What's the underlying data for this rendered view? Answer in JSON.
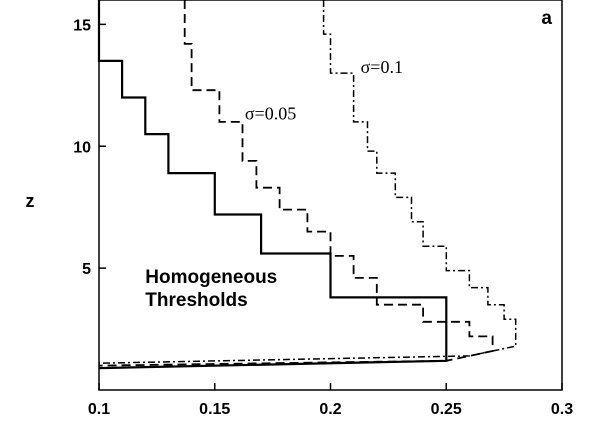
{
  "chart_data": {
    "type": "line",
    "panel_label": "a",
    "xlabel": "",
    "ylabel": "z",
    "xlim": [
      0.1,
      0.3
    ],
    "ylim": [
      0,
      16
    ],
    "xticks": [
      0.1,
      0.15,
      0.2,
      0.25,
      0.3
    ],
    "xtick_labels": [
      "0.1",
      "0.15",
      "0.2",
      "0.25",
      "0.3"
    ],
    "yticks": [
      5,
      10,
      15
    ],
    "ytick_labels": [
      "5",
      "10",
      "15"
    ],
    "grid": false,
    "legend": "none",
    "annotations": [
      {
        "id": "homogeneous",
        "lines": [
          "Homogeneous",
          "Thresholds"
        ],
        "x": 0.12,
        "y": 4.4,
        "style": "bold-sans"
      },
      {
        "id": "sigma005",
        "text": "σ=0.05",
        "x": 0.163,
        "y": 11.1,
        "style": "serif"
      },
      {
        "id": "sigma01",
        "text": "σ=0.1",
        "x": 0.213,
        "y": 13.0,
        "style": "serif"
      }
    ],
    "series": [
      {
        "key": "homogeneous",
        "dash": "solid",
        "color": "#000000",
        "points": [
          [
            0.1,
            16
          ],
          [
            0.1,
            13.5
          ],
          [
            0.11,
            13.5
          ],
          [
            0.11,
            12.0
          ],
          [
            0.12,
            12.0
          ],
          [
            0.12,
            10.5
          ],
          [
            0.13,
            10.5
          ],
          [
            0.13,
            8.9
          ],
          [
            0.15,
            8.9
          ],
          [
            0.15,
            7.2
          ],
          [
            0.17,
            7.2
          ],
          [
            0.17,
            5.6
          ],
          [
            0.2,
            5.6
          ],
          [
            0.2,
            3.8
          ],
          [
            0.25,
            3.8
          ],
          [
            0.25,
            1.2
          ],
          [
            0.1,
            0.9
          ]
        ]
      },
      {
        "key": "sigma_0.05",
        "dash": "dashed",
        "color": "#000000",
        "points": [
          [
            0.137,
            16
          ],
          [
            0.137,
            14.2
          ],
          [
            0.14,
            14.2
          ],
          [
            0.14,
            12.3
          ],
          [
            0.152,
            12.3
          ],
          [
            0.152,
            11.0
          ],
          [
            0.162,
            11.0
          ],
          [
            0.162,
            9.4
          ],
          [
            0.168,
            9.4
          ],
          [
            0.168,
            8.3
          ],
          [
            0.178,
            8.3
          ],
          [
            0.178,
            7.4
          ],
          [
            0.19,
            7.4
          ],
          [
            0.19,
            6.5
          ],
          [
            0.2,
            6.5
          ],
          [
            0.2,
            5.5
          ],
          [
            0.21,
            5.5
          ],
          [
            0.21,
            4.6
          ],
          [
            0.22,
            4.6
          ],
          [
            0.22,
            3.5
          ],
          [
            0.24,
            3.5
          ],
          [
            0.24,
            2.8
          ],
          [
            0.26,
            2.8
          ],
          [
            0.26,
            2.2
          ],
          [
            0.27,
            2.2
          ],
          [
            0.27,
            1.6
          ],
          [
            0.25,
            1.2
          ],
          [
            0.1,
            1.0
          ]
        ]
      },
      {
        "key": "sigma_0.1",
        "dash": "dashdot",
        "color": "#000000",
        "points": [
          [
            0.197,
            16
          ],
          [
            0.197,
            14.6
          ],
          [
            0.2,
            14.6
          ],
          [
            0.2,
            13.0
          ],
          [
            0.21,
            13.0
          ],
          [
            0.21,
            11.0
          ],
          [
            0.216,
            11.0
          ],
          [
            0.216,
            9.8
          ],
          [
            0.22,
            9.8
          ],
          [
            0.22,
            8.9
          ],
          [
            0.228,
            8.9
          ],
          [
            0.228,
            7.9
          ],
          [
            0.235,
            7.9
          ],
          [
            0.235,
            6.9
          ],
          [
            0.24,
            6.9
          ],
          [
            0.24,
            5.9
          ],
          [
            0.25,
            5.9
          ],
          [
            0.25,
            4.9
          ],
          [
            0.26,
            4.9
          ],
          [
            0.26,
            4.2
          ],
          [
            0.268,
            4.2
          ],
          [
            0.268,
            3.5
          ],
          [
            0.275,
            3.5
          ],
          [
            0.275,
            2.9
          ],
          [
            0.28,
            2.9
          ],
          [
            0.28,
            1.8
          ],
          [
            0.26,
            1.4
          ],
          [
            0.1,
            1.1
          ]
        ]
      }
    ]
  }
}
